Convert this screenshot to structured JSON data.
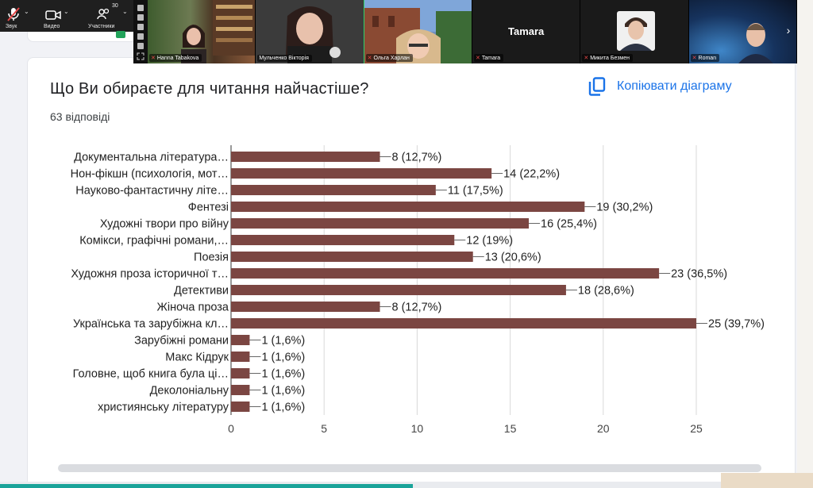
{
  "toolbar": {
    "audio_label": "Звук",
    "video_label": "Видео",
    "participants_label": "Участники",
    "participants_count": "30"
  },
  "participants": [
    {
      "name": "Hanna Tabakova",
      "muted": true
    },
    {
      "name": "Мульченко Вікторія",
      "muted": false,
      "active": true
    },
    {
      "name": "Ольга Харлан",
      "muted": true
    },
    {
      "name": "Tamara",
      "muted": true,
      "display": "Tamara"
    },
    {
      "name": "Микита Безмен",
      "muted": true
    },
    {
      "name": "Roman",
      "muted": true
    }
  ],
  "form": {
    "question": "Що  Ви обираєте для читання найчастіше?",
    "responses": "63 відповіді",
    "copy_chart_label": "Копіювати діаграму"
  },
  "colors": {
    "bar": "#7b4642",
    "accent": "#1a73e8",
    "active_speaker": "#2bd26b",
    "muted": "#e54848"
  },
  "chart_data": {
    "type": "bar",
    "orientation": "horizontal",
    "categories": [
      "Документальна література…",
      "Нон-фікшн (психологія, мот…",
      "Науково-фантастичну літе…",
      "Фентезі",
      "Художні твори про війну",
      "Комікси, графічні романи,…",
      "Поезія",
      "Художня проза історичної т…",
      "Детективи",
      "Жіноча проза",
      "Українська та зарубіжна кл…",
      "Зарубіжні романи",
      "Макс Кідрук",
      "Головне, щоб книга була ці…",
      "Деколоніальну",
      "християнську літературу"
    ],
    "values": [
      8,
      14,
      11,
      19,
      16,
      12,
      13,
      23,
      18,
      8,
      25,
      1,
      1,
      1,
      1,
      1
    ],
    "data_labels": [
      "8 (12,7%)",
      "14 (22,2%)",
      "11 (17,5%)",
      "19 (30,2%)",
      "16 (25,4%)",
      "12 (19%)",
      "13 (20,6%)",
      "23 (36,5%)",
      "18 (28,6%)",
      "8 (12,7%)",
      "25 (39,7%)",
      "1 (1,6%)",
      "1 (1,6%)",
      "1 (1,6%)",
      "1 (1,6%)",
      "1 (1,6%)"
    ],
    "xlim": [
      0,
      25
    ],
    "xticks": [
      "0",
      "5",
      "10",
      "15",
      "20",
      "25"
    ],
    "grid": true
  }
}
